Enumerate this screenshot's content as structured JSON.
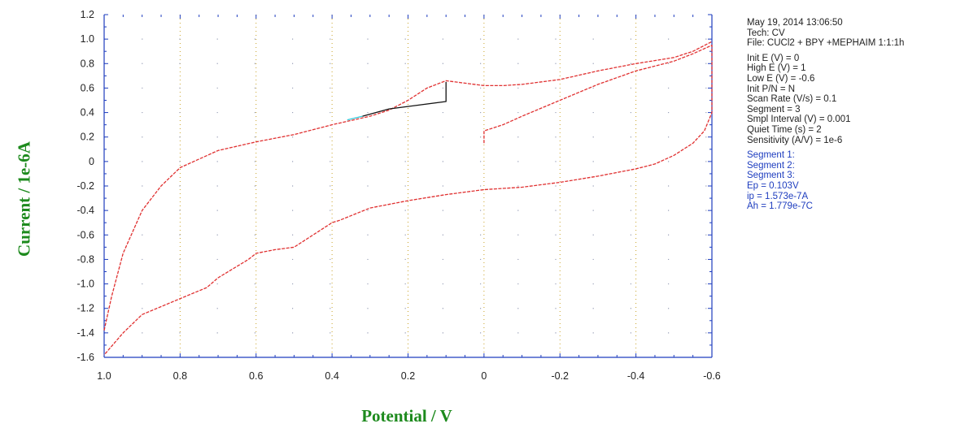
{
  "chart_data": {
    "type": "line",
    "xlabel": "Potential / V",
    "ylabel": "Current / 1e-6A",
    "xlim": [
      1.0,
      -0.6
    ],
    "ylim": [
      -1.6,
      1.2
    ],
    "x_reversed": true,
    "x_ticks": [
      "1.0",
      "0.8",
      "0.6",
      "0.4",
      "0.2",
      "0",
      "-0.2",
      "-0.4",
      "-0.6"
    ],
    "x_tick_values": [
      1.0,
      0.8,
      0.6,
      0.4,
      0.2,
      0,
      -0.2,
      -0.4,
      -0.6
    ],
    "y_ticks": [
      "1.2",
      "1.0",
      "0.8",
      "0.6",
      "0.4",
      "0.2",
      "0",
      "-0.2",
      "-0.4",
      "-0.6",
      "-0.8",
      "-1.0",
      "-1.2",
      "-1.4",
      "-1.6"
    ],
    "y_tick_values": [
      1.2,
      1.0,
      0.8,
      0.6,
      0.4,
      0.2,
      0,
      -0.2,
      -0.4,
      -0.6,
      -0.8,
      -1.0,
      -1.2,
      -1.4,
      -1.6
    ],
    "grid": true,
    "series": [
      {
        "color": "#e03030",
        "x": [
          0.0,
          0.0,
          -0.05,
          -0.1,
          -0.2,
          -0.3,
          -0.4,
          -0.5,
          -0.55,
          -0.6,
          -0.6,
          -0.6,
          -0.58,
          -0.55,
          -0.5,
          -0.45,
          -0.4,
          -0.3,
          -0.2,
          -0.1,
          0.0,
          0.1,
          0.2,
          0.3,
          0.38,
          0.4,
          0.5,
          0.55,
          0.6,
          0.62,
          0.7,
          0.73,
          0.8,
          0.9,
          0.95,
          1.0
        ],
        "y": [
          0.15,
          0.25,
          0.3,
          0.37,
          0.5,
          0.63,
          0.74,
          0.82,
          0.88,
          0.95,
          0.6,
          0.4,
          0.25,
          0.15,
          0.05,
          -0.02,
          -0.06,
          -0.12,
          -0.17,
          -0.21,
          -0.23,
          -0.27,
          -0.32,
          -0.38,
          -0.48,
          -0.5,
          -0.7,
          -0.72,
          -0.75,
          -0.8,
          -0.95,
          -1.03,
          -1.12,
          -1.25,
          -1.4,
          -1.58
        ]
      },
      {
        "color": "#e03030",
        "x": [
          1.0,
          0.98,
          0.95,
          0.9,
          0.85,
          0.8,
          0.7,
          0.6,
          0.5,
          0.4,
          0.3,
          0.25,
          0.2,
          0.15,
          0.1,
          0.05,
          0.0,
          -0.05,
          -0.1,
          -0.2,
          -0.3,
          -0.4,
          -0.5,
          -0.55,
          -0.6
        ],
        "y": [
          -1.38,
          -1.1,
          -0.75,
          -0.4,
          -0.2,
          -0.05,
          0.09,
          0.16,
          0.22,
          0.3,
          0.37,
          0.42,
          0.5,
          0.6,
          0.66,
          0.64,
          0.62,
          0.62,
          0.63,
          0.67,
          0.74,
          0.8,
          0.85,
          0.9,
          0.98
        ]
      },
      {
        "color": "#111111",
        "x": [
          0.32,
          0.25,
          0.1,
          0.1
        ],
        "y": [
          0.37,
          0.43,
          0.49,
          0.65
        ]
      },
      {
        "color": "#33c6d8",
        "x": [
          0.36,
          0.32
        ],
        "y": [
          0.34,
          0.37
        ]
      }
    ]
  },
  "info": {
    "date": "May 19, 2014 13:06:50",
    "tech": "Tech: CV",
    "file": "File: CUCl2 + BPY +MEPHAIM 1:1:1h",
    "params": [
      "Init E (V) = 0",
      "High E (V) = 1",
      "Low E (V) = -0.6",
      "Init P/N = N",
      "Scan Rate (V/s) = 0.1",
      "Segment = 3",
      "Smpl Interval (V) = 0.001",
      "Quiet Time (s) = 2",
      "Sensitivity (A/V) = 1e-6"
    ],
    "segments": [
      "Segment 1:",
      "Segment 2:",
      "Segment 3:",
      "Ep = 0.103V",
      "ip = 1.573e-7A",
      "Ah = 1.779e-7C"
    ]
  },
  "colors": {
    "curve": "#e03030",
    "axis": "#1e3dbf",
    "grid": "#c9a227",
    "label": "#1d8a1d"
  }
}
